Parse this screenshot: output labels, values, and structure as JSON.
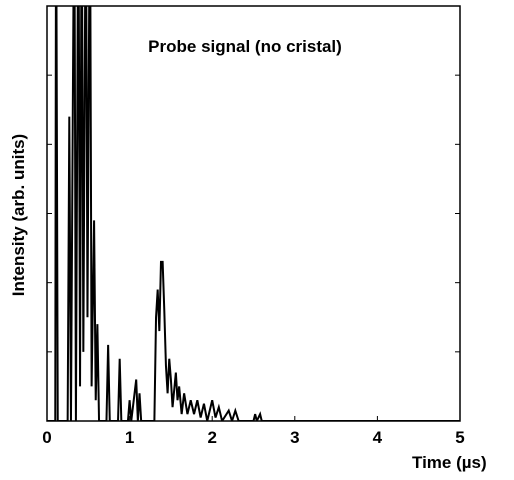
{
  "chart_data": {
    "type": "line",
    "title": "Probe signal (no cristal)",
    "xlabel": "Time (µs)",
    "ylabel": "Intensity (arb. units)",
    "x": [
      0,
      0.1,
      0.11,
      0.13,
      0.25,
      0.27,
      0.29,
      0.33,
      0.35,
      0.38,
      0.4,
      0.42,
      0.44,
      0.47,
      0.49,
      0.52,
      0.54,
      0.57,
      0.59,
      0.61,
      0.63,
      0.72,
      0.74,
      0.76,
      0.86,
      0.88,
      0.9,
      0.98,
      1.0,
      1.02,
      1.08,
      1.1,
      1.12,
      1.14,
      1.3,
      1.32,
      1.34,
      1.36,
      1.38,
      1.4,
      1.42,
      1.44,
      1.46,
      1.48,
      1.5,
      1.52,
      1.56,
      1.58,
      1.6,
      1.63,
      1.66,
      1.7,
      1.74,
      1.78,
      1.82,
      1.86,
      1.9,
      1.94,
      2.0,
      2.04,
      2.08,
      2.12,
      2.2,
      2.24,
      2.28,
      2.32,
      2.5,
      2.52,
      2.54,
      2.58,
      2.6,
      5
    ],
    "values": [
      0,
      0,
      8,
      0,
      0,
      4.4,
      0,
      8,
      0,
      8,
      0.5,
      8,
      1,
      8,
      1.5,
      8,
      0.5,
      2.9,
      0.3,
      1.4,
      0,
      0,
      1.1,
      0,
      0,
      0.9,
      0,
      0,
      0.3,
      0,
      0.6,
      0,
      0.4,
      0,
      0,
      1.5,
      1.9,
      1.3,
      2.3,
      2.3,
      1.6,
      0.8,
      0.4,
      0.9,
      0.6,
      0.2,
      0.7,
      0.3,
      0.5,
      0.1,
      0.4,
      0.1,
      0.3,
      0.1,
      0.3,
      0.05,
      0.25,
      0,
      0.3,
      0.05,
      0.2,
      0,
      0.15,
      0,
      0.15,
      0,
      0,
      0.1,
      0,
      0.1,
      0,
      0
    ],
    "color": "#000000",
    "xlim": [
      0,
      5
    ],
    "xticks": [
      0,
      1,
      2,
      3,
      4,
      5
    ],
    "ylim": [
      0,
      6
    ],
    "yticks": [
      0,
      1,
      2,
      3,
      4,
      5,
      6
    ]
  }
}
